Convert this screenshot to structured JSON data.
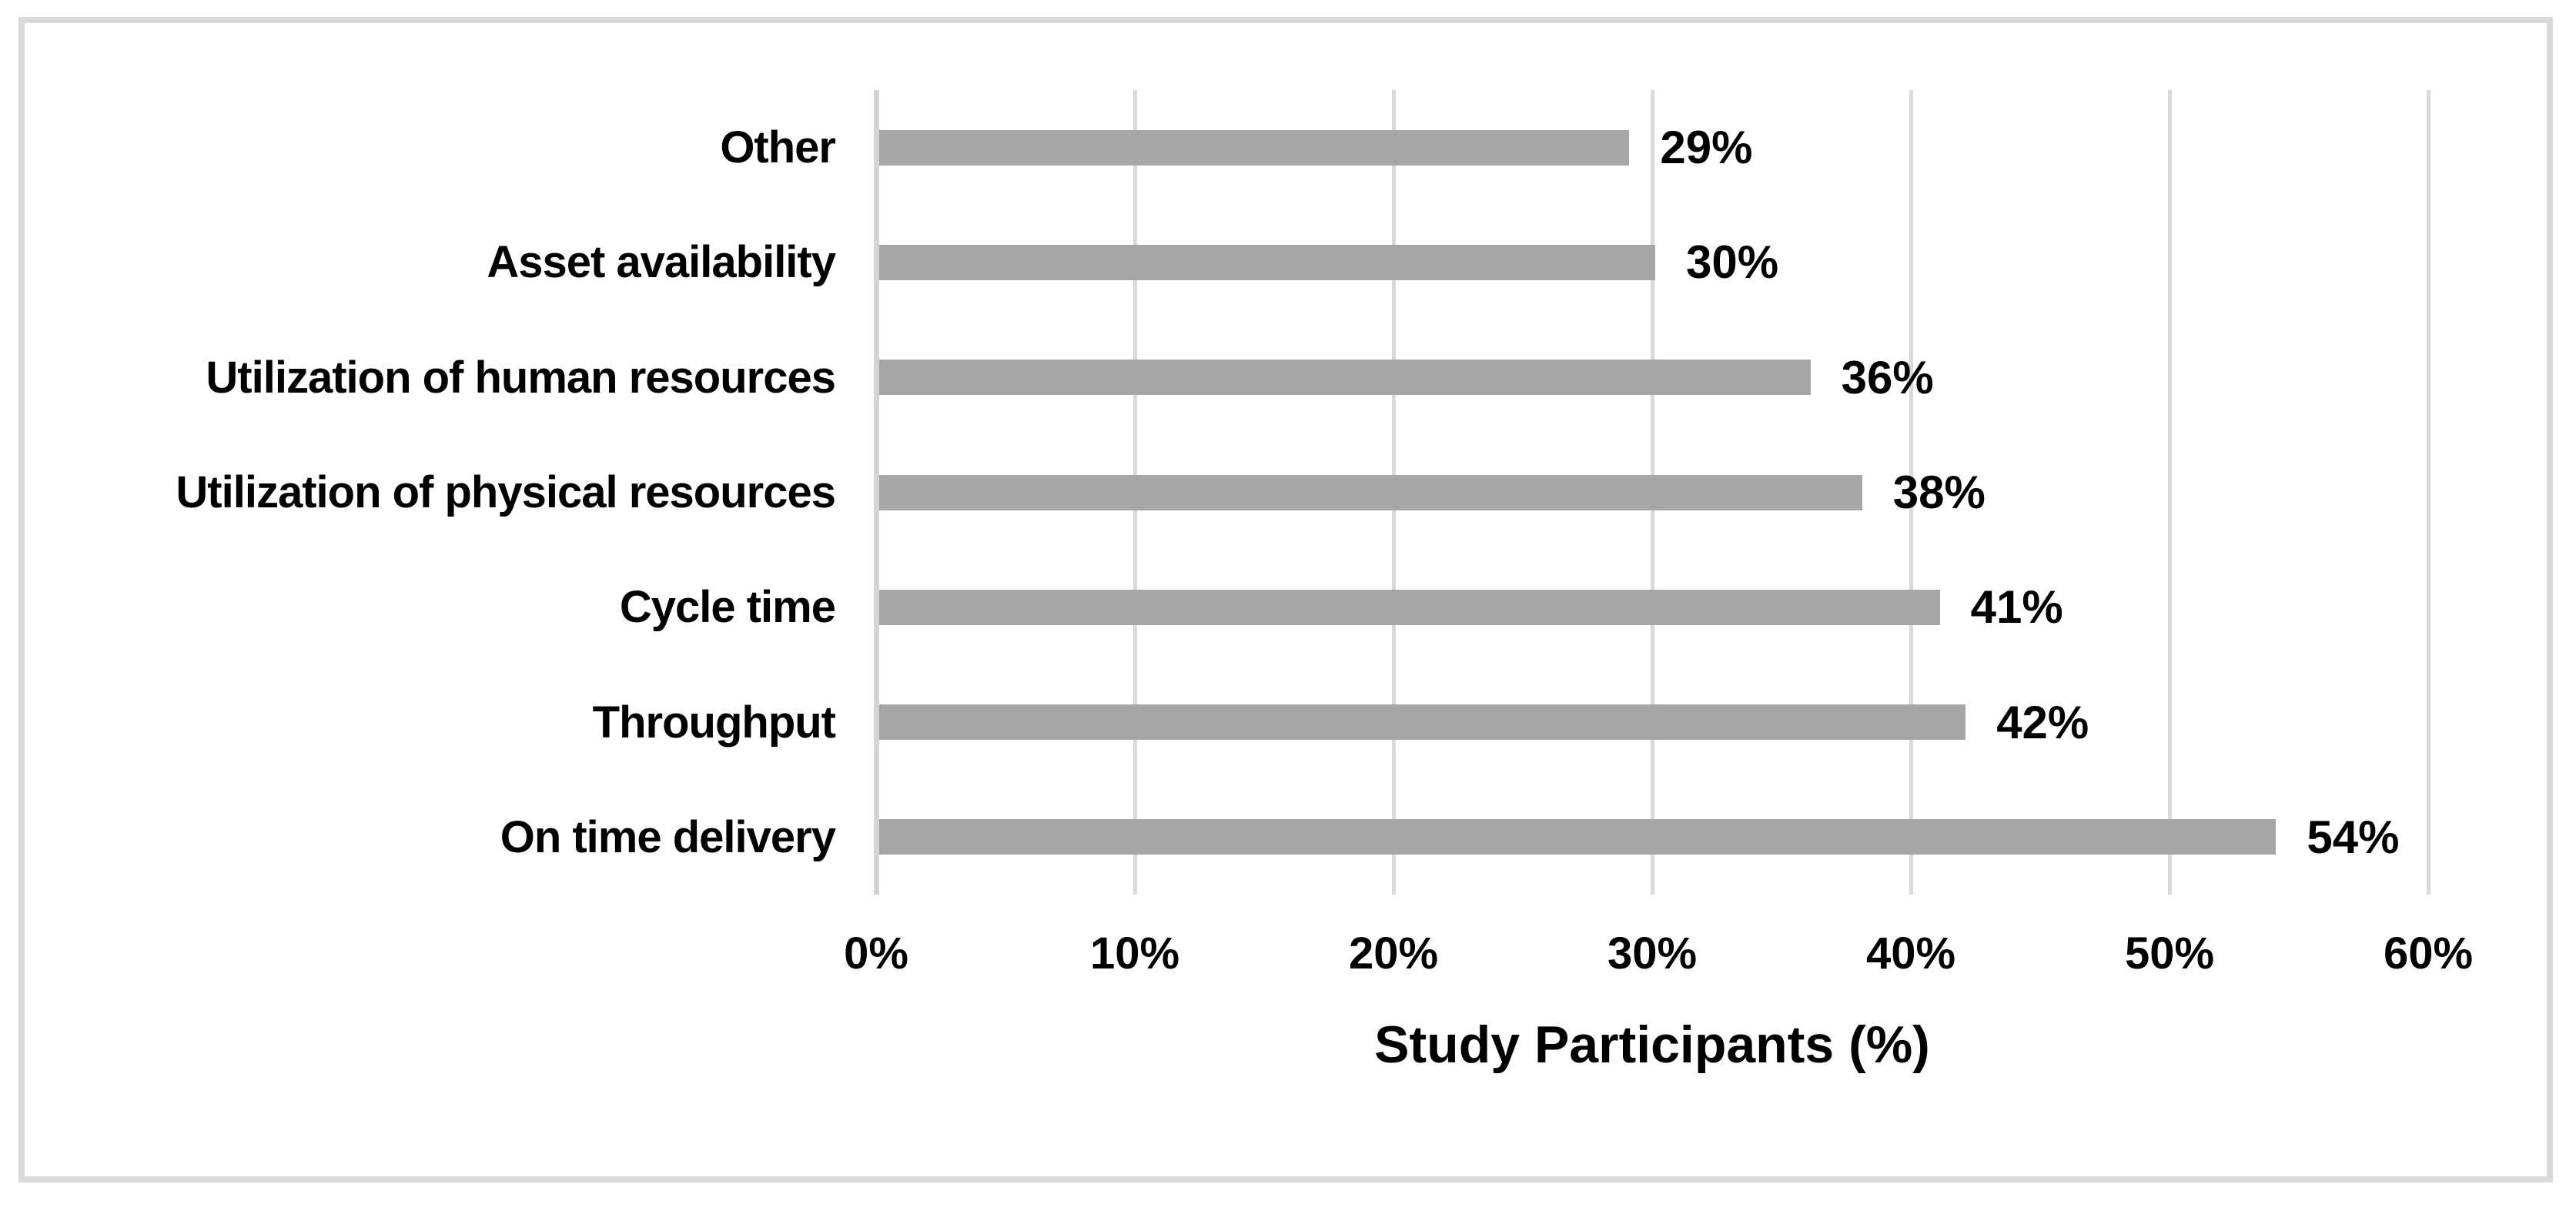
{
  "chart_data": {
    "type": "bar",
    "orientation": "horizontal",
    "title": "",
    "xlabel": "Study Participants (%)",
    "ylabel": "",
    "categories": [
      "Other",
      "Asset availability",
      "Utilization of human resources",
      "Utilization of physical resources",
      "Cycle time",
      "Throughput",
      "On time delivery"
    ],
    "values": [
      29,
      30,
      36,
      38,
      41,
      42,
      54
    ],
    "data_labels": [
      "29%",
      "30%",
      "36%",
      "38%",
      "41%",
      "42%",
      "54%"
    ],
    "xlim": [
      0,
      60
    ],
    "x_ticks": [
      0,
      10,
      20,
      30,
      40,
      50,
      60
    ],
    "x_tick_labels": [
      "0%",
      "10%",
      "20%",
      "30%",
      "40%",
      "50%",
      "60%"
    ],
    "grid": "vertical-gridlines-on",
    "legend": "none",
    "colors": {
      "bar_fill": "#a6a6a6",
      "gridline": "#d9d9d9",
      "axis_line": "#d4d4d4",
      "chart_border": "#d9d9d9",
      "label_text": "#000000"
    }
  }
}
